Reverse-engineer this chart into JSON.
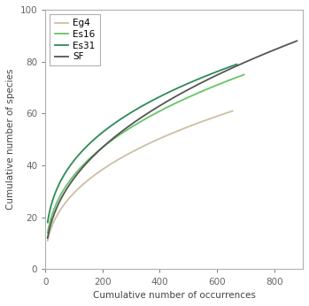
{
  "title": "",
  "xlabel": "Cumulative number of occurrences",
  "ylabel": "Cumulative number of species",
  "xlim": [
    0,
    900
  ],
  "ylim": [
    0,
    100
  ],
  "xticks": [
    0,
    200,
    400,
    600,
    800
  ],
  "yticks": [
    0,
    20,
    40,
    60,
    80,
    100
  ],
  "curves": {
    "Eg4": {
      "color": "#c8b89a",
      "x_start": 8,
      "y_start": 11,
      "x_end": 655,
      "y_end": 61,
      "alpha": 0.9
    },
    "Es16": {
      "color": "#66c466",
      "x_start": 8,
      "y_start": 14,
      "x_end": 695,
      "y_end": 75,
      "alpha": 1.0
    },
    "Es31": {
      "color": "#2d8b57",
      "x_start": 8,
      "y_start": 18,
      "x_end": 670,
      "y_end": 79,
      "alpha": 1.0
    },
    "SF": {
      "color": "#555555",
      "x_start": 8,
      "y_start": 12,
      "x_end": 880,
      "y_end": 88,
      "alpha": 1.0
    }
  },
  "legend_order": [
    "Eg4",
    "Es16",
    "Es31",
    "SF"
  ],
  "background_color": "#ffffff",
  "spine_color": "#b0b0b0",
  "tick_color": "#666666",
  "axis_label_color": "#444444",
  "font_size": 7.5,
  "legend_font_size": 7.5,
  "line_width": 1.3
}
